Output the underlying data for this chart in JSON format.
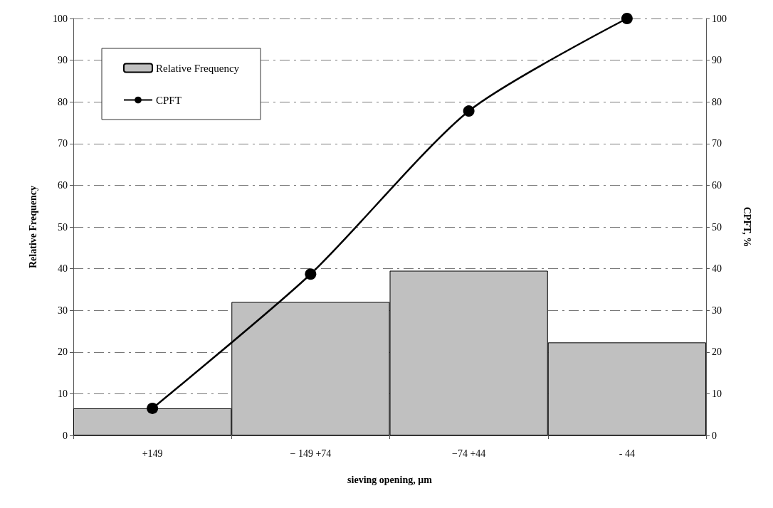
{
  "chart_data": {
    "type": "bar",
    "xlabel": "sieving opening, μm",
    "ylabel": "Relative Frequency",
    "y2label": "CPFT, %",
    "categories": [
      "+149",
      "− 149 +74",
      "−74 +44",
      "- 44"
    ],
    "series": [
      {
        "name": "Relative Frequency",
        "color": "#c0c0c0",
        "values": [
          6.5,
          32,
          39.5,
          22.3
        ]
      },
      {
        "name": "CPFT",
        "type": "line",
        "axis": "y2",
        "color": "#000000",
        "values": [
          6.5,
          38.7,
          77.8,
          100
        ],
        "marker": "circle",
        "line_style": "solid"
      }
    ],
    "ylim": [
      0,
      100
    ],
    "yticks": [
      0,
      10,
      20,
      30,
      40,
      50,
      60,
      70,
      80,
      90,
      100
    ],
    "y2lim": [
      0,
      100
    ],
    "y2ticks": [
      0,
      10,
      20,
      30,
      40,
      50,
      60,
      70,
      80,
      90,
      100
    ],
    "grid": "y",
    "legend": "top left"
  }
}
